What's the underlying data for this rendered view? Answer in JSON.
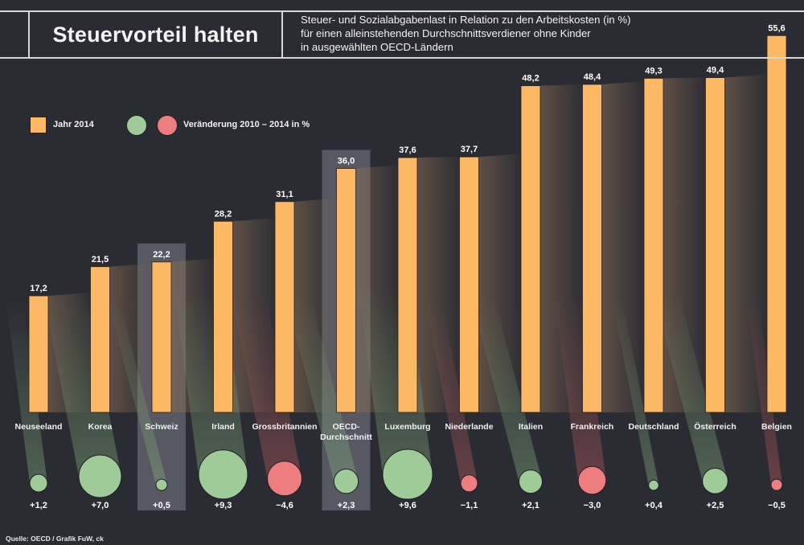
{
  "header": {
    "title": "Steuervorteil halten",
    "subtitle_lines": [
      "Steuer- und Sozialabgabenlast in Relation zu den Arbeitskosten (in %)",
      "für einen alleinstehenden Durchschnittsverdiener ohne Kinder",
      "in ausgewählten OECD-Ländern"
    ]
  },
  "legend": {
    "bar_label": "Jahr 2014",
    "circle_label": "Veränderung 2010 – 2014 in %"
  },
  "colors": {
    "background": "#2a2b33",
    "bar": "#fdb866",
    "positive": "#9fcb98",
    "negative": "#ee7d80",
    "highlight": "#8e9098"
  },
  "source": "Quelle: OECD / Grafik FuW, ck",
  "chart_data": {
    "type": "bar",
    "title": "Steuervorteil halten",
    "subtitle": "Steuer- und Sozialabgabenlast in Relation zu den Arbeitskosten (in %) für einen alleinstehenden Durchschnittsverdiener ohne Kinder in ausgewählten OECD-Ländern",
    "xlabel": "",
    "ylabel": "",
    "ylim": [
      0,
      60
    ],
    "grid": false,
    "legend_position": "top-left",
    "categories": [
      "Neuseeland",
      "Korea",
      "Schweiz",
      "Irland",
      "Grossbritannien",
      "OECD-Durchschnitt",
      "Luxemburg",
      "Niederlande",
      "Italien",
      "Frankreich",
      "Deutschland",
      "Österreich",
      "Belgien"
    ],
    "category_lines": [
      [
        "Neuseeland"
      ],
      [
        "Korea"
      ],
      [
        "Schweiz"
      ],
      [
        "Irland"
      ],
      [
        "Grossbritannien"
      ],
      [
        "OECD-",
        "Durchschnitt"
      ],
      [
        "Luxemburg"
      ],
      [
        "Niederlande"
      ],
      [
        "Italien"
      ],
      [
        "Frankreich"
      ],
      [
        "Deutschland"
      ],
      [
        "Österreich"
      ],
      [
        "Belgien"
      ]
    ],
    "highlighted": [
      "Schweiz",
      "OECD-Durchschnitt"
    ],
    "series": [
      {
        "name": "Jahr 2014",
        "values": [
          17.2,
          21.5,
          22.2,
          28.2,
          31.1,
          36.0,
          37.6,
          37.7,
          48.2,
          48.4,
          49.3,
          49.4,
          55.6
        ],
        "labels": [
          "17,2",
          "21,5",
          "22,2",
          "28,2",
          "31,1",
          "36,0",
          "37,6",
          "37,7",
          "48,2",
          "48,4",
          "49,3",
          "49,4",
          "55,6"
        ]
      },
      {
        "name": "Veränderung 2010 – 2014 in %",
        "values": [
          1.2,
          7.0,
          0.5,
          9.3,
          -4.6,
          2.3,
          9.6,
          -1.1,
          2.1,
          -3.0,
          0.4,
          2.5,
          -0.5
        ],
        "labels": [
          "+1,2",
          "+7,0",
          "+0,5",
          "+9,3",
          "−4,6",
          "+2,3",
          "+9,6",
          "−1,1",
          "+2,1",
          "−3,0",
          "+0,4",
          "+2,5",
          "−0,5"
        ]
      }
    ]
  }
}
